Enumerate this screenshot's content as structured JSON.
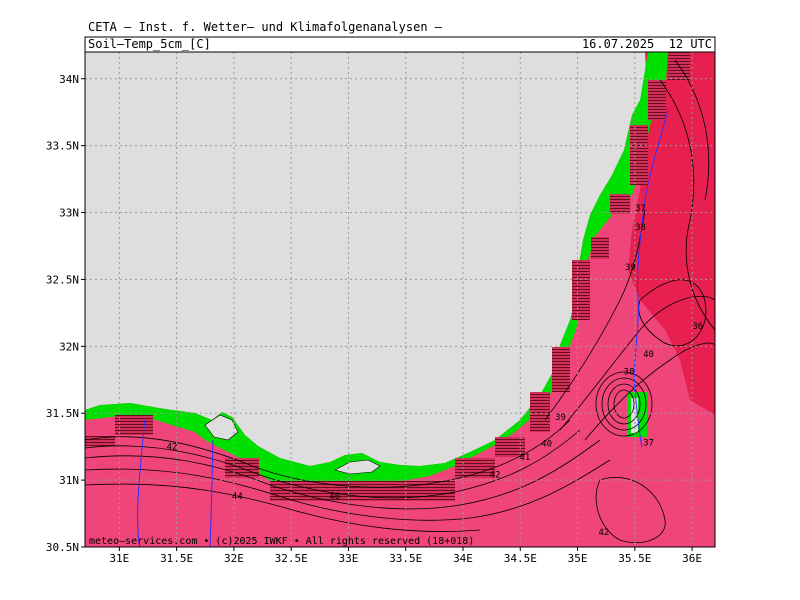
{
  "header": {
    "title": "CETA — Inst. f. Wetter— und Klimafolgenanalysen —",
    "product": "Soil—Temp_5cm_[C]",
    "valid": "16.07.2025  12 UTC"
  },
  "footer": "meteo—services.com • (c)2025 IWKF • All rights reserved (18+018)",
  "colors": {
    "sea": "#dedede",
    "land_cool": "#00e000",
    "land_warm": "#f0457a",
    "land_hot": "#e8204f",
    "land_pink": "#f56b9a",
    "river": "#3030ff",
    "grid": "#9a9a9a"
  },
  "map": {
    "x_ticks": [
      "31E",
      "31.5E",
      "32E",
      "32.5E",
      "33E",
      "33.5E",
      "34E",
      "34.5E",
      "35E",
      "35.5E",
      "36E"
    ],
    "y_ticks": [
      "34N",
      "33.5N",
      "33N",
      "32.5N",
      "32N",
      "31.5N",
      "31N",
      "30.5N"
    ]
  },
  "contour_labels": [
    {
      "text": "42",
      "lon": 31.46,
      "lat": 31.23
    },
    {
      "text": "44",
      "lon": 32.03,
      "lat": 30.86
    },
    {
      "text": "46",
      "lon": 32.88,
      "lat": 30.86
    },
    {
      "text": "42",
      "lon": 34.28,
      "lat": 31.02
    },
    {
      "text": "41",
      "lon": 34.54,
      "lat": 31.15
    },
    {
      "text": "40",
      "lon": 34.73,
      "lat": 31.25
    },
    {
      "text": "39",
      "lon": 34.85,
      "lat": 31.45
    },
    {
      "text": "38",
      "lon": 35.45,
      "lat": 31.79
    },
    {
      "text": "40",
      "lon": 35.62,
      "lat": 31.92
    },
    {
      "text": "39",
      "lon": 35.46,
      "lat": 32.57
    },
    {
      "text": "38",
      "lon": 35.55,
      "lat": 32.87
    },
    {
      "text": "37",
      "lon": 35.55,
      "lat": 33.01
    },
    {
      "text": "36",
      "lon": 36.05,
      "lat": 32.13
    },
    {
      "text": "42",
      "lon": 35.23,
      "lat": 30.59
    },
    {
      "text": "37",
      "lon": 35.62,
      "lat": 31.26
    }
  ]
}
